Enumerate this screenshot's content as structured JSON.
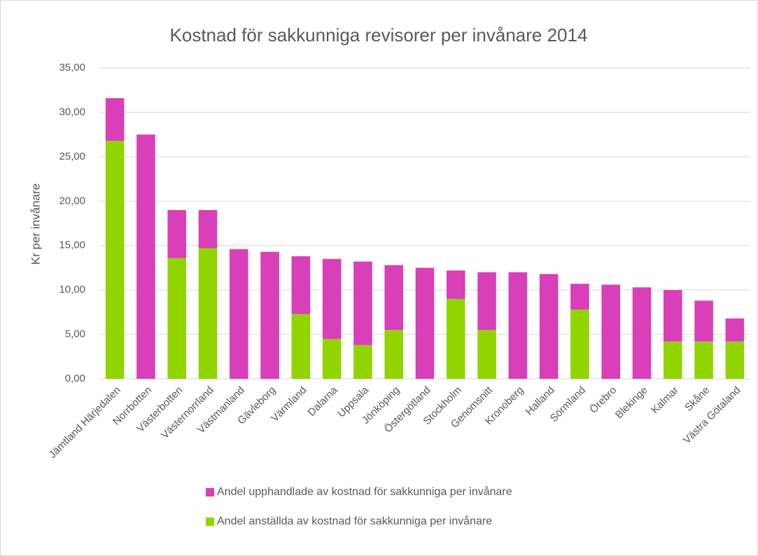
{
  "chart_data": {
    "type": "stacked_bar",
    "title": "Kostnad för sakkunniga revisorer per invånare 2014",
    "ylabel": "Kr per invånare",
    "categories": [
      "Jämtland Härjedalen",
      "Norrbotten",
      "Västerbotten",
      "Västernorrland",
      "Västmanland",
      "Gävleborg",
      "Värmland",
      "Dalarna",
      "Uppsala",
      "Jönköping",
      "Östergötland",
      "Stockholm",
      "Genomsnitt",
      "Kronoberg",
      "Halland",
      "Sörmland",
      "Örebro",
      "Blekinge",
      "Kalmar",
      "Skåne",
      "Västra Götaland"
    ],
    "series": [
      {
        "name": "Andel  anställda av kostnad för sakkunniga per invånare",
        "color": "#92d400",
        "values": [
          26.8,
          0,
          13.6,
          14.7,
          0,
          0,
          7.3,
          4.5,
          3.8,
          5.5,
          0,
          9.0,
          5.5,
          0,
          0,
          7.8,
          0,
          0,
          4.2,
          4.2,
          4.2
        ]
      },
      {
        "name": "Andel upphandlade av kostnad för sakkunniga per invånare",
        "color": "#d83fb8",
        "values": [
          4.8,
          27.5,
          5.4,
          4.3,
          14.6,
          14.3,
          6.5,
          9.0,
          9.4,
          7.3,
          12.5,
          3.2,
          6.5,
          12.0,
          11.8,
          2.9,
          10.6,
          10.3,
          5.8,
          4.6,
          2.6
        ]
      }
    ],
    "ylim": [
      0,
      35
    ],
    "yticks": [
      {
        "value": 0,
        "label": "0,00"
      },
      {
        "value": 5,
        "label": "5,00"
      },
      {
        "value": 10,
        "label": "10,00"
      },
      {
        "value": 15,
        "label": "15,00"
      },
      {
        "value": 20,
        "label": "20,00"
      },
      {
        "value": 25,
        "label": "25,00"
      },
      {
        "value": 30,
        "label": "30,00"
      },
      {
        "value": 35,
        "label": "35,00"
      }
    ],
    "grid": true,
    "legend": "bottom"
  }
}
